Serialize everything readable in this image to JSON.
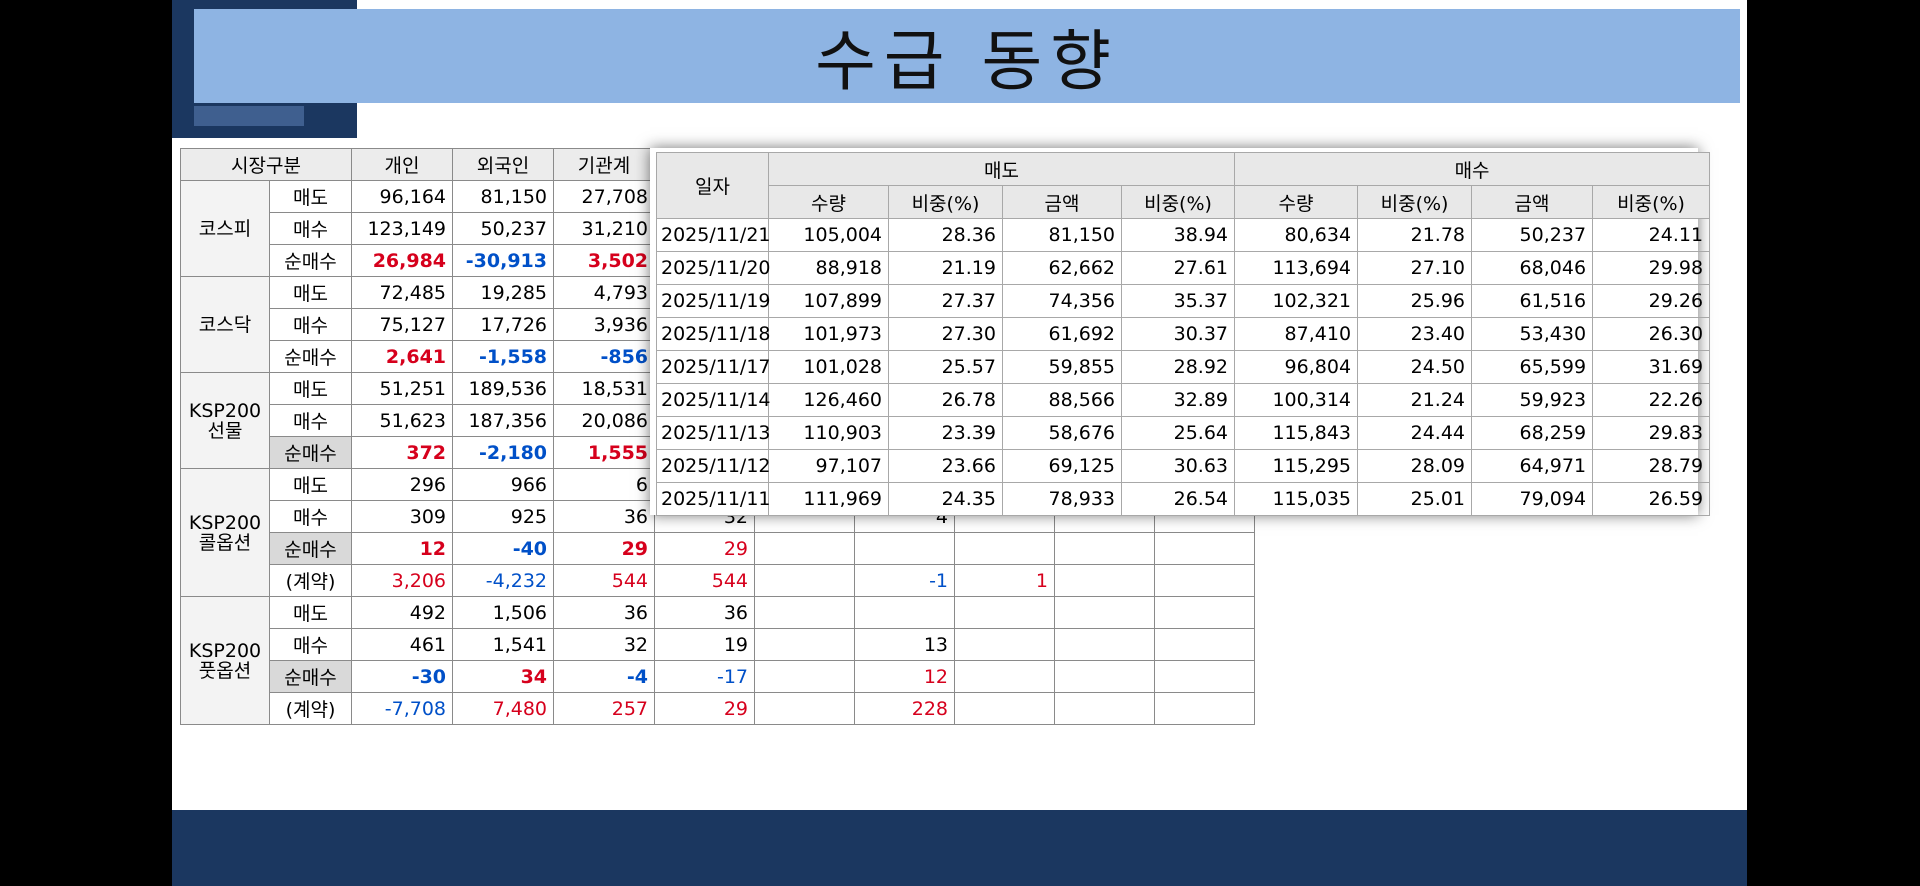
{
  "title": "수급 동향",
  "left_table": {
    "headers": [
      "시장구분",
      "개인",
      "외국인",
      "기관계"
    ],
    "groups": [
      {
        "name": "코스피",
        "rows": [
          {
            "label": "매도",
            "cells": [
              "96,164",
              "81,150",
              "27,708",
              "",
              "",
              "",
              "",
              "",
              ""
            ]
          },
          {
            "label": "매수",
            "cells": [
              "123,149",
              "50,237",
              "31,210",
              "",
              "",
              "",
              "",
              "",
              ""
            ]
          },
          {
            "label": "순매수",
            "cells": [
              "26,984",
              "-30,913",
              "3,502",
              "",
              "",
              "",
              "",
              "",
              ""
            ]
          }
        ]
      },
      {
        "name": "코스닥",
        "rows": [
          {
            "label": "매도",
            "cells": [
              "72,485",
              "19,285",
              "4,793",
              "",
              "",
              "",
              "",
              "",
              ""
            ]
          },
          {
            "label": "매수",
            "cells": [
              "75,127",
              "17,726",
              "3,936",
              "",
              "",
              "",
              "",
              "",
              ""
            ]
          },
          {
            "label": "순매수",
            "cells": [
              "2,641",
              "-1,558",
              "-856",
              "",
              "",
              "",
              "",
              "",
              ""
            ]
          }
        ]
      },
      {
        "name": "KSP200 선물",
        "rows": [
          {
            "label": "매도",
            "cells": [
              "51,251",
              "189,536",
              "18,531",
              "",
              "",
              "",
              "",
              "",
              ""
            ]
          },
          {
            "label": "매수",
            "cells": [
              "51,623",
              "187,356",
              "20,086",
              "",
              "",
              "",
              "",
              "",
              ""
            ]
          },
          {
            "label": "순매수",
            "cells": [
              "372",
              "-2,180",
              "1,555",
              "",
              "",
              "",
              "",
              "",
              ""
            ]
          }
        ]
      },
      {
        "name": "KSP200 콜옵션",
        "rows": [
          {
            "label": "매도",
            "cells": [
              "296",
              "966",
              "6",
              "",
              "",
              "",
              "",
              "",
              ""
            ]
          },
          {
            "label": "매수",
            "cells": [
              "309",
              "925",
              "36",
              "32",
              "",
              "4",
              "",
              "",
              ""
            ]
          },
          {
            "label": "순매수",
            "cells": [
              "12",
              "-40",
              "29",
              "29",
              "",
              "",
              "",
              "",
              ""
            ]
          },
          {
            "label": "(계약)",
            "cells": [
              "3,206",
              "-4,232",
              "544",
              "544",
              "",
              "-1",
              "1",
              "",
              ""
            ]
          }
        ]
      },
      {
        "name": "KSP200 풋옵션",
        "rows": [
          {
            "label": "매도",
            "cells": [
              "492",
              "1,506",
              "36",
              "36",
              "",
              "",
              "",
              "",
              ""
            ]
          },
          {
            "label": "매수",
            "cells": [
              "461",
              "1,541",
              "32",
              "19",
              "",
              "13",
              "",
              "",
              ""
            ]
          },
          {
            "label": "순매수",
            "cells": [
              "-30",
              "34",
              "-4",
              "-17",
              "",
              "12",
              "",
              "",
              ""
            ]
          },
          {
            "label": "(계약)",
            "cells": [
              "-7,708",
              "7,480",
              "257",
              "29",
              "",
              "228",
              "",
              "",
              ""
            ]
          }
        ]
      }
    ]
  },
  "popup_table": {
    "date_header": "일자",
    "sell_header": "매도",
    "buy_header": "매수",
    "sub_headers": [
      "수량",
      "비중(%)",
      "금액",
      "비중(%)",
      "수량",
      "비중(%)",
      "금액",
      "비중(%)"
    ],
    "rows": [
      {
        "date": "2025/11/21",
        "values": [
          "105,004",
          "28.36",
          "81,150",
          "38.94",
          "80,634",
          "21.78",
          "50,237",
          "24.11"
        ]
      },
      {
        "date": "2025/11/20",
        "values": [
          "88,918",
          "21.19",
          "62,662",
          "27.61",
          "113,694",
          "27.10",
          "68,046",
          "29.98"
        ]
      },
      {
        "date": "2025/11/19",
        "values": [
          "107,899",
          "27.37",
          "74,356",
          "35.37",
          "102,321",
          "25.96",
          "61,516",
          "29.26"
        ]
      },
      {
        "date": "2025/11/18",
        "values": [
          "101,973",
          "27.30",
          "61,692",
          "30.37",
          "87,410",
          "23.40",
          "53,430",
          "26.30"
        ]
      },
      {
        "date": "2025/11/17",
        "values": [
          "101,028",
          "25.57",
          "59,855",
          "28.92",
          "96,804",
          "24.50",
          "65,599",
          "31.69"
        ]
      },
      {
        "date": "2025/11/14",
        "values": [
          "126,460",
          "26.78",
          "88,566",
          "32.89",
          "100,314",
          "21.24",
          "59,923",
          "22.26"
        ]
      },
      {
        "date": "2025/11/13",
        "values": [
          "110,903",
          "23.39",
          "58,676",
          "25.64",
          "115,843",
          "24.44",
          "68,259",
          "29.83"
        ]
      },
      {
        "date": "2025/11/12",
        "values": [
          "97,107",
          "23.66",
          "69,125",
          "30.63",
          "115,295",
          "28.09",
          "64,971",
          "28.79"
        ]
      },
      {
        "date": "2025/11/11",
        "values": [
          "111,969",
          "24.35",
          "78,933",
          "26.54",
          "115,035",
          "25.01",
          "79,094",
          "26.59"
        ]
      }
    ]
  },
  "colors": {
    "title_bar": "#8eb4e3",
    "dark_band": "#1b3760",
    "positive": "#d6001c",
    "negative": "#0050c8"
  }
}
